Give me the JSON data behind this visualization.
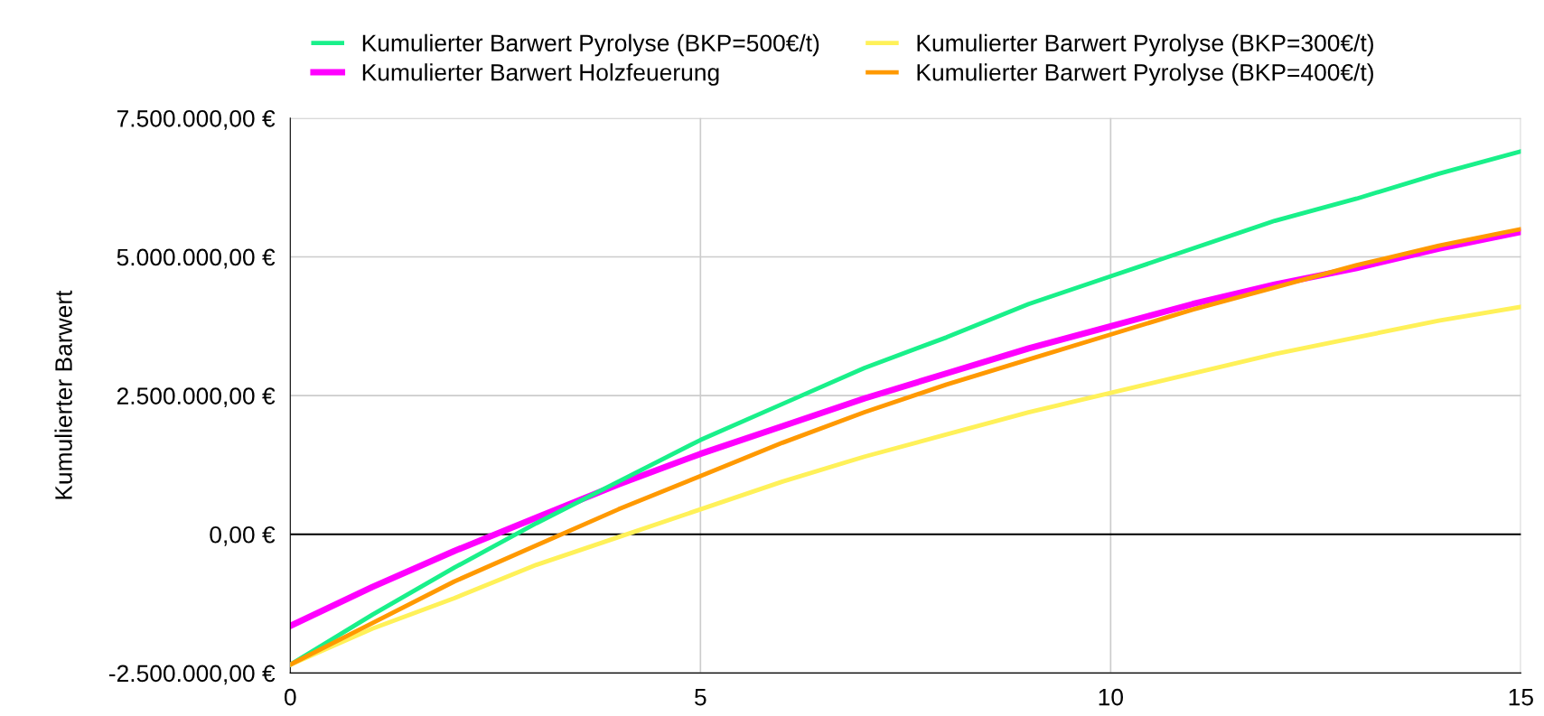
{
  "chart_data": {
    "type": "line",
    "ylabel": "Kumulierter Barwert",
    "x": [
      0,
      1,
      2,
      3,
      4,
      5,
      6,
      7,
      8,
      9,
      10,
      11,
      12,
      13,
      14,
      15
    ],
    "series": [
      {
        "name": "Kumulierter Barwert Pyrolyse (BKP=500€/t)",
        "color": "#19f08a",
        "values": [
          -2350000,
          -1450000,
          -600000,
          200000,
          950000,
          1700000,
          2350000,
          3000000,
          3550000,
          4150000,
          4650000,
          5150000,
          5650000,
          6050000,
          6500000,
          6900000
        ]
      },
      {
        "name": "Kumulierter Barwert Holzfeuerung",
        "color": "#ff00ff",
        "values": [
          -1650000,
          -950000,
          -300000,
          300000,
          900000,
          1450000,
          1950000,
          2450000,
          2900000,
          3350000,
          3750000,
          4150000,
          4500000,
          4800000,
          5150000,
          5450000
        ]
      },
      {
        "name": "Kumulierter Barwert Pyrolyse (BKP=300€/t)",
        "color": "#fff159",
        "values": [
          -2350000,
          -1700000,
          -1150000,
          -550000,
          -50000,
          450000,
          950000,
          1400000,
          1800000,
          2200000,
          2550000,
          2900000,
          3250000,
          3550000,
          3850000,
          4100000
        ]
      },
      {
        "name": "Kumulierter Barwert Pyrolyse (BKP=400€/t)",
        "color": "#ff9900",
        "values": [
          -2350000,
          -1600000,
          -850000,
          -200000,
          450000,
          1050000,
          1650000,
          2200000,
          2700000,
          3150000,
          3600000,
          4050000,
          4450000,
          4850000,
          5200000,
          5500000
        ]
      }
    ],
    "xlim": [
      0,
      15
    ],
    "xticks": [
      0,
      5,
      10,
      15
    ],
    "ylim": [
      -2500000,
      7500000
    ],
    "yticks": [
      {
        "value": -2500000,
        "label": "-2.500.000,00 €"
      },
      {
        "value": 0,
        "label": "0,00 €"
      },
      {
        "value": 2500000,
        "label": "2.500.000,00 €"
      },
      {
        "value": 5000000,
        "label": "5.000.000,00 €"
      },
      {
        "value": 7500000,
        "label": "7.500.000,00 €"
      }
    ],
    "ref_lines": [
      {
        "axis": "y",
        "value": 0,
        "color": "#000000"
      }
    ],
    "grid": true,
    "legend": "top",
    "marker": "none",
    "line_style": "solid"
  }
}
